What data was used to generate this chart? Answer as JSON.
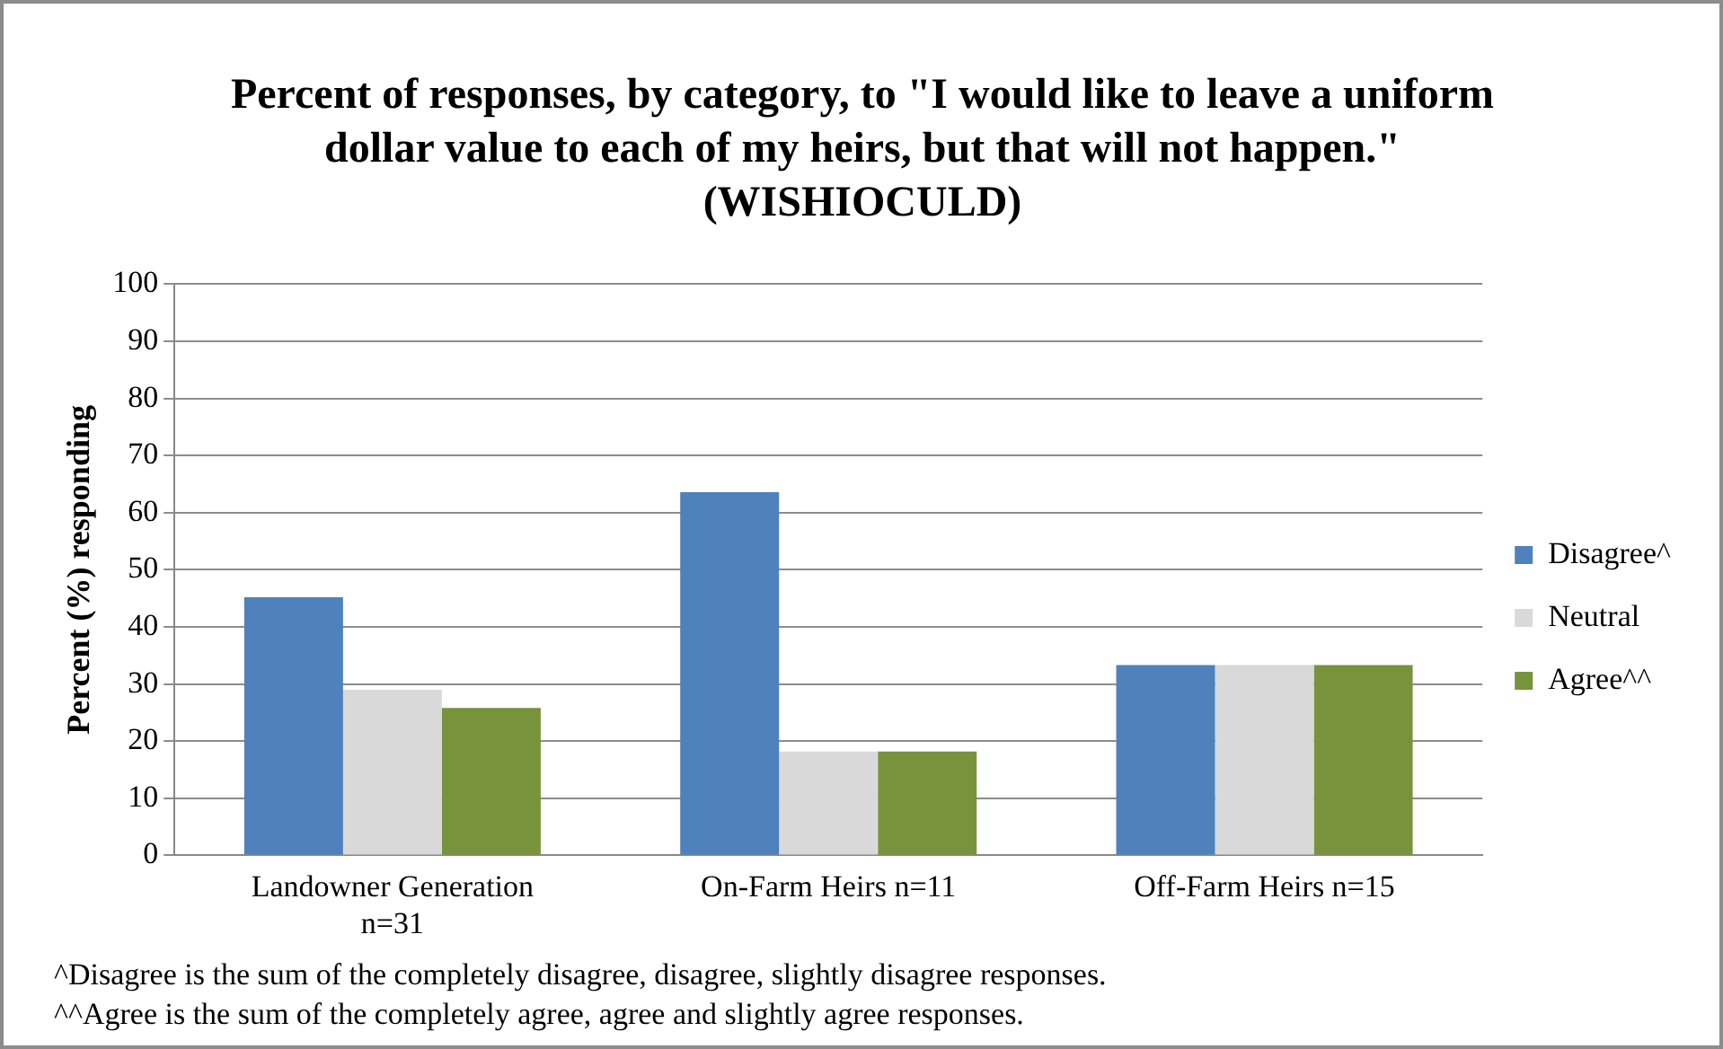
{
  "chart_data": {
    "type": "bar",
    "title": "Percent of responses, by category, to \"I would like to leave a uniform dollar value to each of my heirs, but that will not happen.\" (WISHIOCULD)",
    "ylabel": "Percent (%) responding",
    "categories": [
      "Landowner Generation n=31",
      "On-Farm Heirs n=11",
      "Off-Farm Heirs n=15"
    ],
    "series": [
      {
        "name": "Disagree^",
        "color": "#4f81bd",
        "values": [
          45.2,
          63.6,
          33.3
        ]
      },
      {
        "name": "Neutral",
        "color": "#d9d9d9",
        "values": [
          29.0,
          18.2,
          33.3
        ]
      },
      {
        "name": "Agree^^",
        "color": "#77933c",
        "values": [
          25.8,
          18.2,
          33.3
        ]
      }
    ],
    "ylim": [
      0,
      100
    ],
    "yticks": [
      0,
      10,
      20,
      30,
      40,
      50,
      60,
      70,
      80,
      90,
      100
    ],
    "grid": "y",
    "legend": "right",
    "annotations": [
      "^Disagree is the sum of the completely disagree, disagree, slightly disagree responses.",
      "^^Agree is the sum of the completely agree, agree and slightly agree responses."
    ]
  }
}
